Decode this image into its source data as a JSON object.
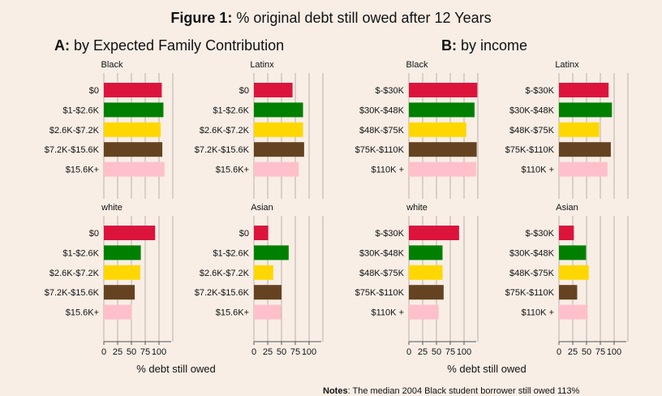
{
  "figure": {
    "title_bold": "Figure 1:",
    "title_rest": " % original debt still owed after 12 Years",
    "notes_prefix": "Notes",
    "notes_text": ": The median 2004 Black student borrower still owed 113%"
  },
  "panels": {
    "a": {
      "letter": "A:",
      "label": " by Expected Family Contribution"
    },
    "b": {
      "letter": "B:",
      "label": " by income"
    }
  },
  "colors": [
    "#dc143c",
    "#008000",
    "#ffd700",
    "#654321",
    "#ffc0cb"
  ],
  "chart_data": [
    {
      "type": "bar",
      "orientation": "horizontal",
      "panel": "A",
      "title": "Black",
      "categories": [
        "$0",
        "$1-$2.6K",
        "$2.6K-$7.2K",
        "$7.2K-$15.6K",
        "$15.6K+"
      ],
      "values": [
        105,
        108,
        103,
        106,
        110
      ],
      "xticks": [
        "0",
        "25",
        "50",
        "75",
        "100"
      ],
      "xlim": [
        0,
        125
      ]
    },
    {
      "type": "bar",
      "orientation": "horizontal",
      "panel": "A",
      "title": "Latinx",
      "categories": [
        "$0",
        "$1-$2.6K",
        "$2.6K-$7.2K",
        "$7.2K-$15.6K",
        "$15.6K+"
      ],
      "values": [
        70,
        89,
        89,
        91,
        81
      ],
      "xticks": [
        "0",
        "25",
        "50",
        "75",
        "100"
      ],
      "xlim": [
        0,
        125
      ]
    },
    {
      "type": "bar",
      "orientation": "horizontal",
      "panel": "A",
      "title": "white",
      "categories": [
        "$0",
        "$1-$2.6K",
        "$2.6K-$7.2K",
        "$7.2K-$15.6K",
        "$15.6K+"
      ],
      "values": [
        93,
        67,
        66,
        56,
        51
      ],
      "xticks": [
        "0",
        "25",
        "50",
        "75",
        "100"
      ],
      "xlim": [
        0,
        125
      ],
      "xlabel": "% debt still owed"
    },
    {
      "type": "bar",
      "orientation": "horizontal",
      "panel": "A",
      "title": "Asian",
      "categories": [
        "$0",
        "$1-$2.6K",
        "$2.6K-$7.2K",
        "$7.2K-$15.6K",
        "$15.6K+"
      ],
      "values": [
        26,
        63,
        35,
        50,
        49
      ],
      "xticks": [
        "0",
        "25",
        "50",
        "75",
        "100"
      ],
      "xlim": [
        0,
        125
      ],
      "xlabel": "% debt still owed"
    },
    {
      "type": "bar",
      "orientation": "horizontal",
      "panel": "B",
      "title": "Black",
      "categories": [
        "$-$30K",
        "$30K-$48K",
        "$48K-$75K",
        "$75K-$110K",
        "$110K +"
      ],
      "values": [
        124,
        119,
        104,
        123,
        122
      ],
      "xticks": [
        "0",
        "25",
        "50",
        "75",
        "100"
      ],
      "xlim": [
        0,
        125
      ]
    },
    {
      "type": "bar",
      "orientation": "horizontal",
      "panel": "B",
      "title": "Latinx",
      "categories": [
        "$-$30K",
        "$30K-$48K",
        "$48K-$75K",
        "$75K-$110K",
        "$110K +"
      ],
      "values": [
        90,
        96,
        73,
        94,
        88
      ],
      "xticks": [
        "0",
        "25",
        "50",
        "75",
        "100"
      ],
      "xlim": [
        0,
        125
      ]
    },
    {
      "type": "bar",
      "orientation": "horizontal",
      "panel": "B",
      "title": "white",
      "categories": [
        "$-$30K",
        "$30K-$48K",
        "$48K-$75K",
        "$75K-$110K",
        "$110K +"
      ],
      "values": [
        91,
        61,
        61,
        63,
        54
      ],
      "xticks": [
        "0",
        "25",
        "50",
        "75",
        "100"
      ],
      "xlim": [
        0,
        125
      ],
      "xlabel": "% debt still owed"
    },
    {
      "type": "bar",
      "orientation": "horizontal",
      "panel": "B",
      "title": "Asian",
      "categories": [
        "$-$30K",
        "$30K-$48K",
        "$48K-$75K",
        "$75K-$110K",
        "$110K +"
      ],
      "values": [
        27,
        49,
        54,
        33,
        52
      ],
      "xticks": [
        "0",
        "25",
        "50",
        "75",
        "100"
      ],
      "xlim": [
        0,
        125
      ],
      "xlabel": "% debt still owed"
    }
  ]
}
